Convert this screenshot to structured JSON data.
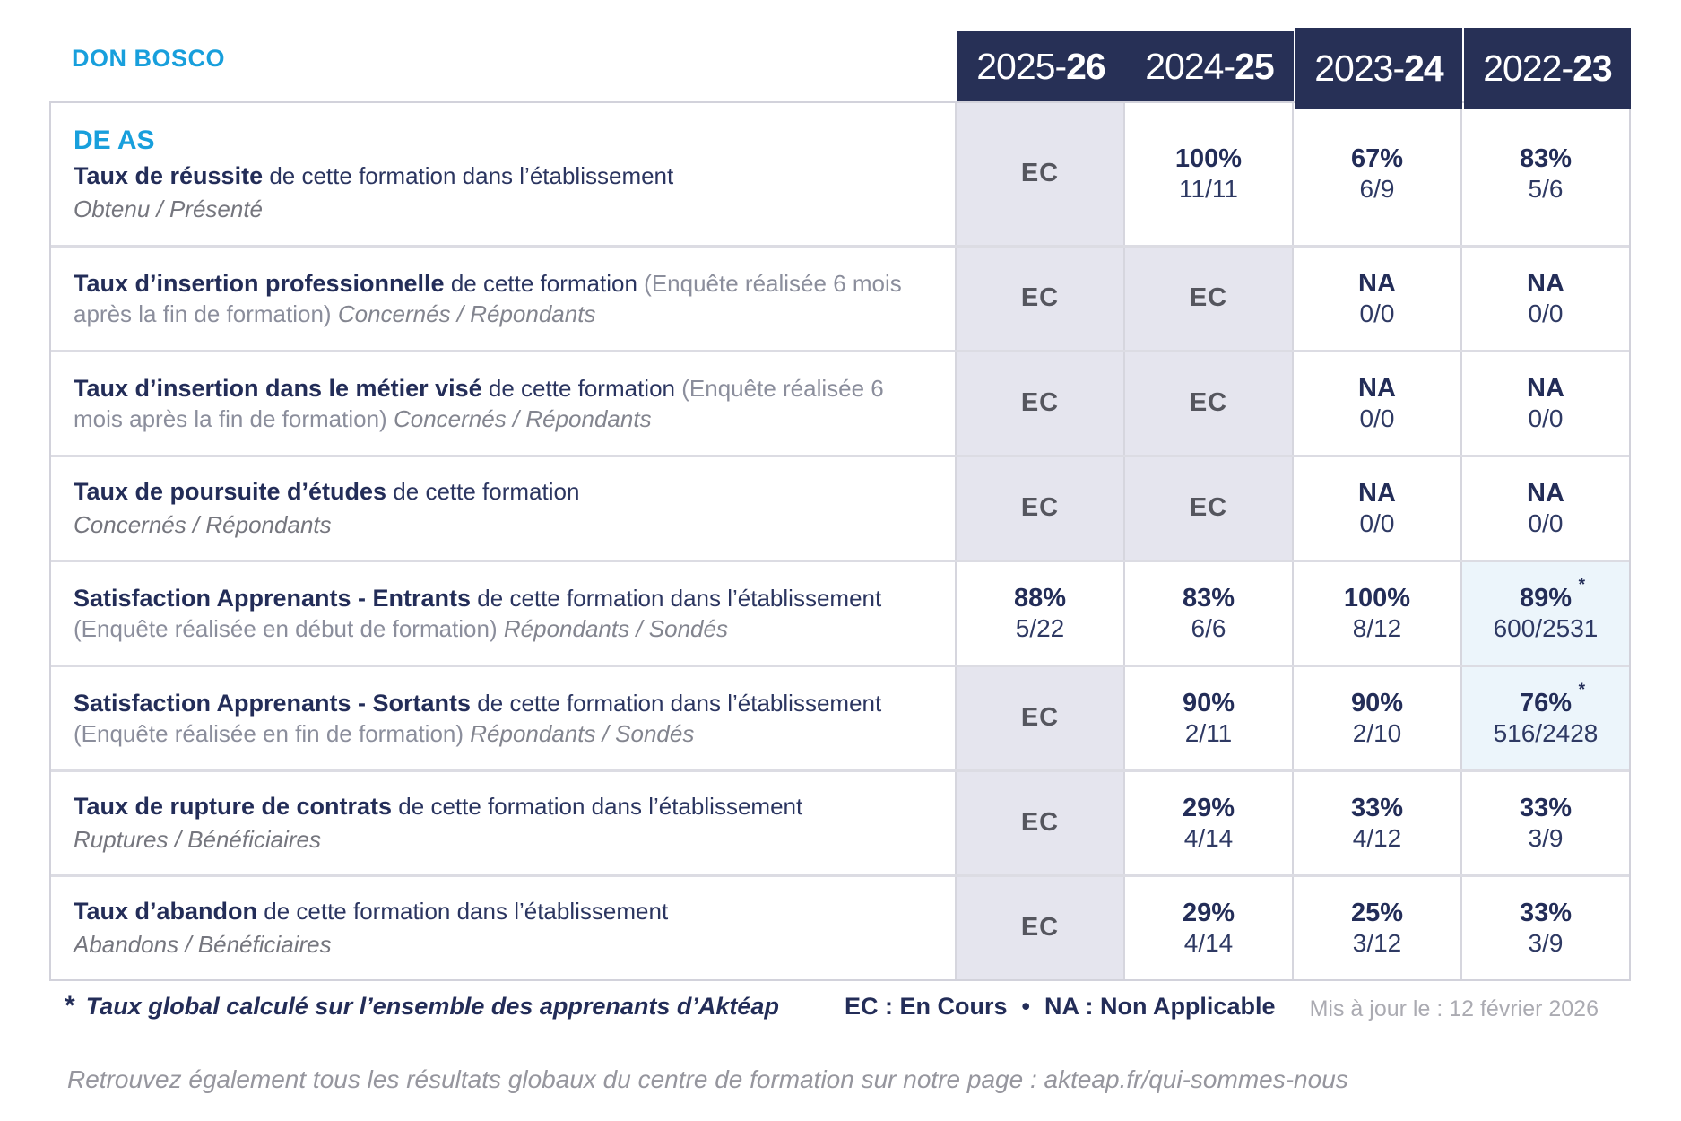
{
  "brand": {
    "name": "DON BOSCO",
    "color": "#189fdc"
  },
  "colors": {
    "accent_cyan": "#189fdc",
    "navy_text": "#232d58",
    "header_bg": "#273056",
    "ec_cell_bg": "#e5e5ee",
    "highlight_cell_bg": "#ecf5fb",
    "muted_gray": "#8b8e9c"
  },
  "header": {
    "years": [
      {
        "prefix": "2025-",
        "bold": "26"
      },
      {
        "prefix": "2024-",
        "bold": "25"
      },
      {
        "prefix": "2023-",
        "bold": "24"
      },
      {
        "prefix": "2022-",
        "bold": "23"
      }
    ]
  },
  "table": {
    "star_marker": "*",
    "ec_label": "EC",
    "rows": [
      {
        "tall": true,
        "badge": "DE AS",
        "title": "Taux de réussite",
        "desc": "de cette formation dans l’établissement",
        "paren": "",
        "sub_inline": "",
        "sub_block": "Obtenu / Présenté",
        "cells": [
          {
            "ec": true
          },
          {
            "pct": "100%",
            "frac": "11/11"
          },
          {
            "pct": "67%",
            "frac": "6/9"
          },
          {
            "pct": "83%",
            "frac": "5/6"
          }
        ]
      },
      {
        "badge": "",
        "title": "Taux d’insertion professionnelle",
        "desc": "de cette formation",
        "paren": "(Enquête réalisée 6 mois après la fin de formation)",
        "sub_inline": "Concernés / Répondants",
        "sub_block": "",
        "cells": [
          {
            "ec": true
          },
          {
            "ec": true
          },
          {
            "pct": "NA",
            "frac": "0/0"
          },
          {
            "pct": "NA",
            "frac": "0/0"
          }
        ]
      },
      {
        "badge": "",
        "title": "Taux d’insertion dans le métier visé",
        "desc": "de cette formation",
        "paren": "(Enquête réalisée 6 mois après la fin de formation)",
        "sub_inline": "Concernés / Répondants",
        "sub_block": "",
        "cells": [
          {
            "ec": true
          },
          {
            "ec": true
          },
          {
            "pct": "NA",
            "frac": "0/0"
          },
          {
            "pct": "NA",
            "frac": "0/0"
          }
        ]
      },
      {
        "badge": "",
        "title": "Taux de poursuite d’études",
        "desc": "de cette formation",
        "paren": "",
        "sub_inline": "",
        "sub_block": "Concernés / Répondants",
        "cells": [
          {
            "ec": true
          },
          {
            "ec": true
          },
          {
            "pct": "NA",
            "frac": "0/0"
          },
          {
            "pct": "NA",
            "frac": "0/0"
          }
        ]
      },
      {
        "badge": "",
        "title": "Satisfaction Apprenants - Entrants",
        "desc": "de cette formation dans l’établissement",
        "paren": "(Enquête réalisée en début de formation)",
        "sub_inline": "Répondants / Sondés",
        "sub_block": "",
        "cells": [
          {
            "pct": "88%",
            "frac": "5/22"
          },
          {
            "pct": "83%",
            "frac": "6/6"
          },
          {
            "pct": "100%",
            "frac": "8/12"
          },
          {
            "pct": "89%",
            "frac": "600/2531",
            "star": true,
            "highlight": true
          }
        ]
      },
      {
        "badge": "",
        "title": "Satisfaction Apprenants - Sortants",
        "desc": "de cette formation dans l’établissement",
        "paren": "(Enquête réalisée en fin de formation)",
        "sub_inline": "Répondants / Sondés",
        "sub_block": "",
        "cells": [
          {
            "ec": true
          },
          {
            "pct": "90%",
            "frac": "2/11"
          },
          {
            "pct": "90%",
            "frac": "2/10"
          },
          {
            "pct": "76%",
            "frac": "516/2428",
            "star": true,
            "highlight": true
          }
        ]
      },
      {
        "badge": "",
        "title": "Taux de rupture de contrats",
        "desc": "de cette formation dans l’établissement",
        "paren": "",
        "sub_inline": "",
        "sub_block": "Ruptures / Bénéficiaires",
        "cells": [
          {
            "ec": true
          },
          {
            "pct": "29%",
            "frac": "4/14"
          },
          {
            "pct": "33%",
            "frac": "4/12"
          },
          {
            "pct": "33%",
            "frac": "3/9"
          }
        ]
      },
      {
        "badge": "",
        "title": "Taux d’abandon",
        "desc": "de cette formation dans l’établissement",
        "paren": "",
        "sub_inline": "",
        "sub_block": "Abandons / Bénéficiaires",
        "cells": [
          {
            "ec": true
          },
          {
            "pct": "29%",
            "frac": "4/14"
          },
          {
            "pct": "25%",
            "frac": "3/12"
          },
          {
            "pct": "33%",
            "frac": "3/9"
          }
        ]
      }
    ]
  },
  "footer": {
    "star_symbol": "*",
    "star_note": "Taux global calculé sur l’ensemble des apprenants d’Aktéap",
    "legend_ec": "EC : En Cours",
    "bullet": "•",
    "legend_na": "NA : Non Applicable",
    "updated": "Mis à jour le : 12 février 2026",
    "bottom_note": "Retrouvez également tous les résultats globaux du centre de formation sur notre page : akteap.fr/qui-sommes-nous"
  }
}
